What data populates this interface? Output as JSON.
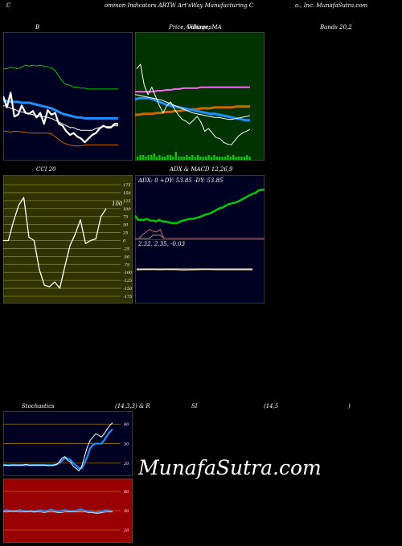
{
  "header": {
    "left": "C",
    "center": "ommon  Indicators ARTW Art'sWay Manufacturing C",
    "right": "o., Inc. MunafaSutra.com"
  },
  "labels": {
    "bollinger_title": "B",
    "price_title": "Price,  Volume,  MA",
    "price_overlay": "Oilliages",
    "bands_title": "Bands 20,2",
    "cci_title": "CCI 20",
    "adx_title": "ADX  & MACD 12,26,9",
    "adx_readout": "ADX: 0  +DY: 53.85 -DY: 53.85",
    "macd_readout": "2.32,  2.35,  -0.03",
    "stoch_title": "Stochastics",
    "stoch_params": "(14,3,3) & R",
    "rsi_title": "SI",
    "rsi_params": "(14,5",
    "rsi_close": ")",
    "brand": "MunafaSutra.com"
  },
  "colors": {
    "bollinger_bg": "#000022",
    "price_bg": "#003300",
    "cci_bg": "#2e3300",
    "adx_bg": "#000022",
    "stoch_bg": "#000022",
    "rsi_bg": "#990000",
    "green": "#00cc00",
    "blue": "#1e90ff",
    "orange": "#cc6600",
    "white": "#ffffff",
    "pink": "#ff66ff"
  },
  "chart_data": [
    {
      "type": "line",
      "name": "bollinger",
      "series": [
        {
          "role": "upper",
          "values": [
            80,
            80,
            82,
            81,
            80,
            82,
            84,
            83,
            84,
            83,
            84,
            83,
            82,
            81,
            78,
            72,
            66,
            63,
            62,
            60,
            60,
            59,
            59,
            58,
            58,
            58,
            58,
            58,
            58,
            58,
            58,
            58
          ]
        },
        {
          "role": "middle",
          "values": [
            45,
            45,
            44,
            44,
            44,
            43,
            43,
            43,
            42,
            41,
            40,
            39,
            38,
            37,
            35,
            33,
            31,
            30,
            29,
            28,
            27,
            27,
            26,
            26,
            26,
            26,
            26,
            26,
            26,
            26,
            26,
            26
          ]
        },
        {
          "role": "lower",
          "values": [
            12,
            12,
            11,
            12,
            12,
            11,
            11,
            10,
            10,
            10,
            10,
            10,
            10,
            9,
            6,
            3,
            0,
            -2,
            -3,
            -4,
            -4,
            -4,
            -3,
            -3,
            -3,
            -3,
            -3,
            -3,
            -3,
            -3,
            -3,
            -3
          ]
        },
        {
          "role": "close",
          "values": [
            50,
            38,
            54,
            28,
            30,
            40,
            32,
            31,
            34,
            27,
            32,
            20,
            35,
            30,
            32,
            20,
            18,
            12,
            8,
            10,
            6,
            4,
            0,
            4,
            8,
            10,
            15,
            18,
            16,
            16,
            20,
            20
          ]
        },
        {
          "role": "ma",
          "values": [
            40,
            39,
            37,
            36,
            34,
            33,
            32,
            31,
            30,
            29,
            28,
            28,
            27,
            26,
            24,
            22,
            20,
            18,
            16,
            16,
            14,
            13,
            13,
            13,
            13,
            15,
            16,
            17,
            17,
            17,
            18,
            18
          ]
        }
      ]
    },
    {
      "type": "line",
      "name": "price_volume_ma",
      "series": [
        {
          "role": "close",
          "values": [
            80,
            85,
            62,
            52,
            60,
            50,
            40,
            32,
            40,
            44,
            36,
            30,
            25,
            23,
            20,
            24,
            28,
            22,
            12,
            15,
            10,
            5,
            4,
            0,
            -2,
            -3,
            2,
            7,
            10,
            12,
            14
          ]
        },
        {
          "role": "ma_short",
          "values": [
            52,
            51,
            50,
            49,
            48,
            47,
            46,
            44,
            42,
            40,
            38,
            36,
            34,
            32,
            31,
            30,
            29,
            28,
            27,
            27,
            26,
            25,
            25,
            26,
            27,
            28,
            29
          ]
        },
        {
          "role": "ma_mid",
          "values": [
            47,
            48,
            48,
            48,
            47,
            45,
            43,
            41,
            40,
            39,
            38,
            37,
            36,
            35,
            34,
            33,
            32,
            31,
            31,
            30,
            29,
            28,
            27,
            26,
            25,
            24,
            24
          ]
        },
        {
          "role": "ma_long",
          "values": [
            30,
            30,
            31,
            31,
            31,
            32,
            32,
            33,
            33,
            34,
            34,
            35,
            35,
            36,
            36,
            37,
            37,
            37,
            38,
            38,
            38,
            38,
            38,
            39,
            39,
            39,
            39
          ]
        },
        {
          "role": "flat",
          "values": [
            55,
            55,
            55,
            55,
            55,
            56,
            56,
            57,
            57,
            58,
            58,
            59,
            59,
            59,
            59,
            60,
            60,
            60,
            60,
            60,
            60,
            60,
            60,
            60,
            60,
            60,
            60
          ]
        },
        {
          "role": "volume",
          "values": [
            2,
            3,
            3,
            2,
            3,
            3,
            4,
            2,
            3,
            2,
            2,
            3,
            3,
            2,
            5,
            2,
            2,
            2,
            3,
            2,
            3,
            2,
            3,
            2,
            2,
            2,
            3,
            2,
            3,
            2,
            2,
            2,
            2,
            3,
            2,
            3,
            2,
            2,
            2,
            2,
            3,
            2
          ]
        }
      ]
    },
    {
      "type": "line",
      "name": "cci",
      "ylim": [
        -175,
        175
      ],
      "ticks": [
        175,
        150,
        125,
        100,
        75,
        50,
        25,
        0,
        -25,
        -50,
        -75,
        -100,
        -125,
        -150,
        -175
      ],
      "annotation": "100",
      "series": [
        {
          "role": "cci",
          "values": [
            0,
            0,
            60,
            110,
            135,
            10,
            0,
            -90,
            -140,
            -145,
            -130,
            -150,
            -80,
            -15,
            20,
            65,
            -10,
            0,
            5,
            75,
            100
          ]
        }
      ]
    },
    {
      "type": "line",
      "name": "adx",
      "series": [
        {
          "role": "adx",
          "values": [
            30,
            25,
            25,
            25,
            26,
            24,
            24,
            23,
            25,
            23,
            23,
            22,
            21,
            21,
            21,
            23,
            24,
            25,
            26,
            26,
            27,
            28,
            29,
            31,
            32,
            33,
            35,
            37,
            39,
            40,
            42,
            44,
            45,
            46,
            47,
            49,
            51,
            53,
            55,
            57,
            58,
            61,
            62,
            62
          ]
        },
        {
          "role": "plus_dy",
          "values": [
            2,
            2,
            2,
            2,
            2,
            6,
            6,
            6,
            2,
            2,
            2,
            2,
            2,
            2,
            2,
            2,
            2,
            2,
            2,
            2,
            2,
            2,
            2,
            2,
            2,
            2,
            2,
            2,
            2,
            2,
            2,
            2,
            2,
            2,
            2,
            2,
            2
          ]
        },
        {
          "role": "minus_dy",
          "values": [
            2,
            2,
            6,
            10,
            13,
            11,
            10,
            13,
            2,
            2,
            2,
            2,
            2,
            2,
            2,
            2,
            2,
            2,
            2,
            2,
            2,
            2,
            2,
            2,
            2,
            2,
            2,
            2,
            2,
            2,
            2,
            2,
            2,
            2,
            2,
            2,
            2
          ]
        }
      ]
    },
    {
      "type": "line",
      "name": "macd",
      "series": [
        {
          "role": "macd",
          "values": [
            2.32,
            2.33,
            2.32,
            2.33,
            2.31,
            2.32,
            2.33,
            2.32,
            2.32,
            2.32,
            2.32
          ]
        },
        {
          "role": "signal",
          "values": [
            2.35,
            2.35,
            2.35,
            2.35,
            2.35,
            2.35,
            2.35,
            2.35,
            2.35,
            2.35,
            2.35
          ]
        }
      ]
    },
    {
      "type": "line",
      "name": "stochastics",
      "ylim": [
        0,
        100
      ],
      "ticks": [
        80,
        50,
        20
      ],
      "series": [
        {
          "role": "k",
          "values": [
            17,
            17,
            16,
            17,
            17,
            17,
            17,
            17,
            18,
            17,
            17,
            17,
            17,
            17,
            17,
            17,
            16,
            16,
            17,
            18,
            22,
            28,
            30,
            24,
            22,
            15,
            12,
            8,
            15,
            30,
            45,
            55,
            60,
            65,
            63,
            60,
            65,
            72,
            78,
            82
          ]
        },
        {
          "role": "d",
          "values": [
            17,
            17,
            17,
            17,
            17,
            17,
            17,
            17,
            17,
            17,
            17,
            17,
            17,
            17,
            17,
            17,
            17,
            17,
            17,
            18,
            20,
            24,
            28,
            27,
            25,
            20,
            16,
            12,
            12,
            20,
            30,
            43,
            48,
            50,
            50,
            50,
            55,
            62,
            68,
            72
          ]
        }
      ]
    },
    {
      "type": "line",
      "name": "rsi",
      "ylim": [
        0,
        100
      ],
      "ticks": [
        80,
        50,
        20
      ],
      "series": [
        {
          "role": "rsi",
          "values": [
            50,
            51,
            50,
            49,
            50,
            51,
            50,
            49,
            50,
            48,
            50,
            51,
            49,
            50,
            52,
            50,
            48,
            50,
            51,
            50,
            49,
            50,
            51,
            52,
            50,
            49,
            48,
            47,
            48,
            49,
            51,
            50,
            49
          ]
        },
        {
          "role": "avg",
          "values": [
            48,
            48,
            49,
            49,
            49,
            48,
            48,
            48,
            49,
            48,
            48,
            48,
            47,
            48,
            48,
            48,
            47,
            47,
            48,
            48,
            48,
            48,
            48,
            48,
            48,
            47,
            47,
            46,
            46,
            47,
            48,
            48,
            48
          ]
        }
      ]
    }
  ]
}
